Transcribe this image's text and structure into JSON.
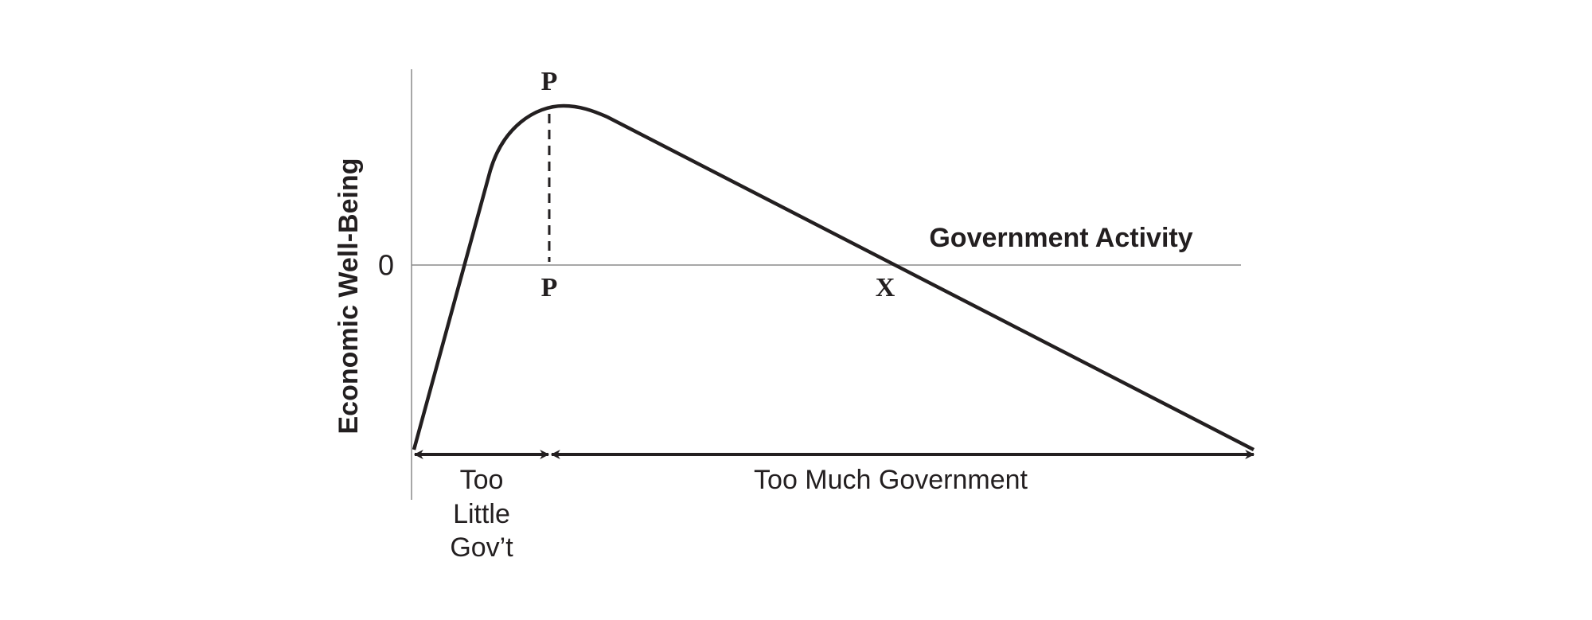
{
  "diagram": {
    "y_axis_label": "Economic Well-Being",
    "x_axis_label": "Government Activity",
    "zero_label": "0",
    "peak_label_top": "P",
    "peak_label_bottom": "P",
    "crossing_label": "X",
    "regions": {
      "left": {
        "lines": [
          "Too",
          "Little",
          "Gov’t"
        ]
      },
      "right": {
        "label": "Too Much Government"
      }
    }
  }
}
